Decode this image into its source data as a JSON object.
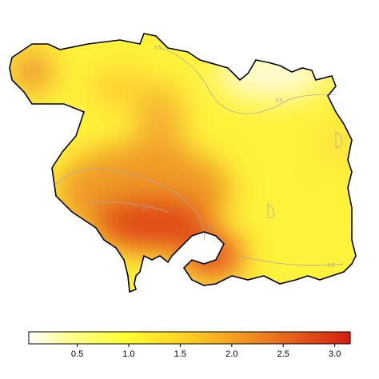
{
  "map": {
    "contour_labels": [
      "0.5",
      "0.5",
      "0.5",
      "2.5",
      "2.5"
    ]
  },
  "colorbar": {
    "lim": [
      0.03,
      3.15
    ],
    "ticks": [
      0.5,
      {
        "value": 1,
        "label": "1.0"
      },
      1.5,
      {
        "value": 2,
        "label": "2.0"
      },
      2.5,
      {
        "value": 3,
        "label": "3.0"
      }
    ]
  }
}
